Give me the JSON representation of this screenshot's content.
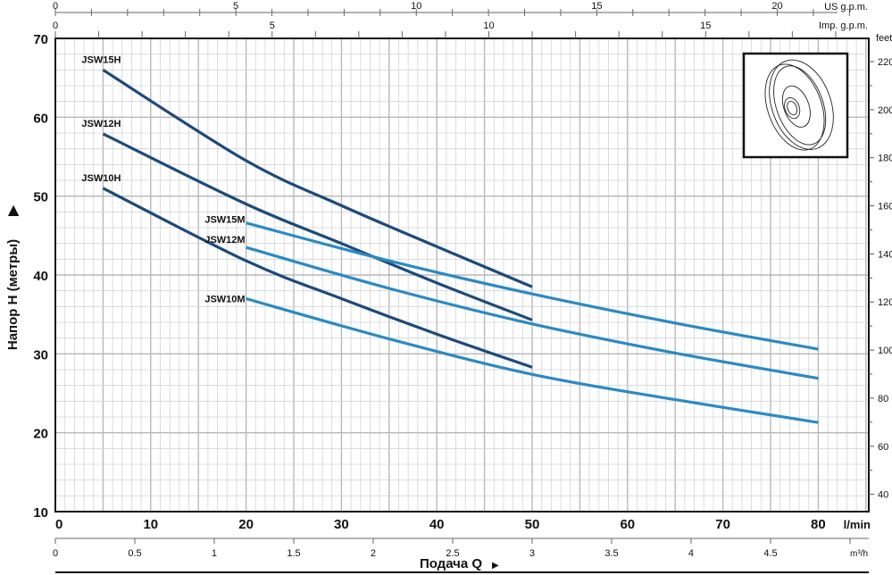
{
  "chart_data": {
    "type": "line",
    "title": "",
    "xlabel": "Подача Q",
    "ylabel": "Напор H (метры)",
    "xunit": "l/min",
    "xlim": [
      0,
      85.3
    ],
    "ylim": [
      10,
      70
    ],
    "grid": true,
    "x_ticks": [
      0,
      10,
      20,
      30,
      40,
      50,
      60,
      70,
      80
    ],
    "y_ticks": [
      10,
      20,
      30,
      40,
      50,
      60,
      70
    ],
    "secondary_axes": {
      "m3h": {
        "unit": "m³/h",
        "ticks": [
          "0",
          "0.5",
          "1",
          "1.5",
          "2",
          "2.5",
          "3",
          "3.5",
          "4",
          "4.5"
        ]
      },
      "us_gpm": {
        "unit": "US g.p.m.",
        "labeled_ticks": [
          "0",
          "5",
          "10",
          "15",
          "20"
        ]
      },
      "imp_gpm": {
        "unit": "Imp. g.p.m.",
        "labeled_ticks": [
          "0",
          "5",
          "10",
          "15"
        ]
      },
      "feet": {
        "unit": "feet",
        "ticks": [
          "40",
          "60",
          "80",
          "100",
          "120",
          "140",
          "160",
          "180",
          "200",
          "220"
        ]
      }
    },
    "series": [
      {
        "name": "JSW15H",
        "color": "#1d4a7a",
        "x": [
          5,
          20,
          30,
          40,
          50
        ],
        "y": [
          66.0,
          54.5,
          48.8,
          43.6,
          38.5
        ]
      },
      {
        "name": "JSW12H",
        "color": "#1d4a7a",
        "x": [
          5,
          20,
          30,
          40,
          50
        ],
        "y": [
          57.9,
          49.0,
          44.0,
          39.0,
          34.3
        ]
      },
      {
        "name": "JSW10H",
        "color": "#1d4a7a",
        "x": [
          5,
          20,
          30,
          40,
          50
        ],
        "y": [
          51.0,
          41.8,
          37.0,
          32.5,
          28.3
        ]
      },
      {
        "name": "JSW15M",
        "color": "#2b8ac4",
        "x": [
          20,
          35,
          50,
          65,
          80
        ],
        "y": [
          46.6,
          41.8,
          37.6,
          33.9,
          30.6
        ]
      },
      {
        "name": "JSW12M",
        "color": "#2b8ac4",
        "x": [
          20,
          35,
          50,
          65,
          80
        ],
        "y": [
          43.5,
          38.3,
          33.8,
          30.1,
          26.9
        ]
      },
      {
        "name": "JSW10M",
        "color": "#2b8ac4",
        "x": [
          20,
          35,
          50,
          65,
          80
        ],
        "y": [
          37.0,
          31.9,
          27.4,
          24.2,
          21.3
        ]
      }
    ]
  }
}
